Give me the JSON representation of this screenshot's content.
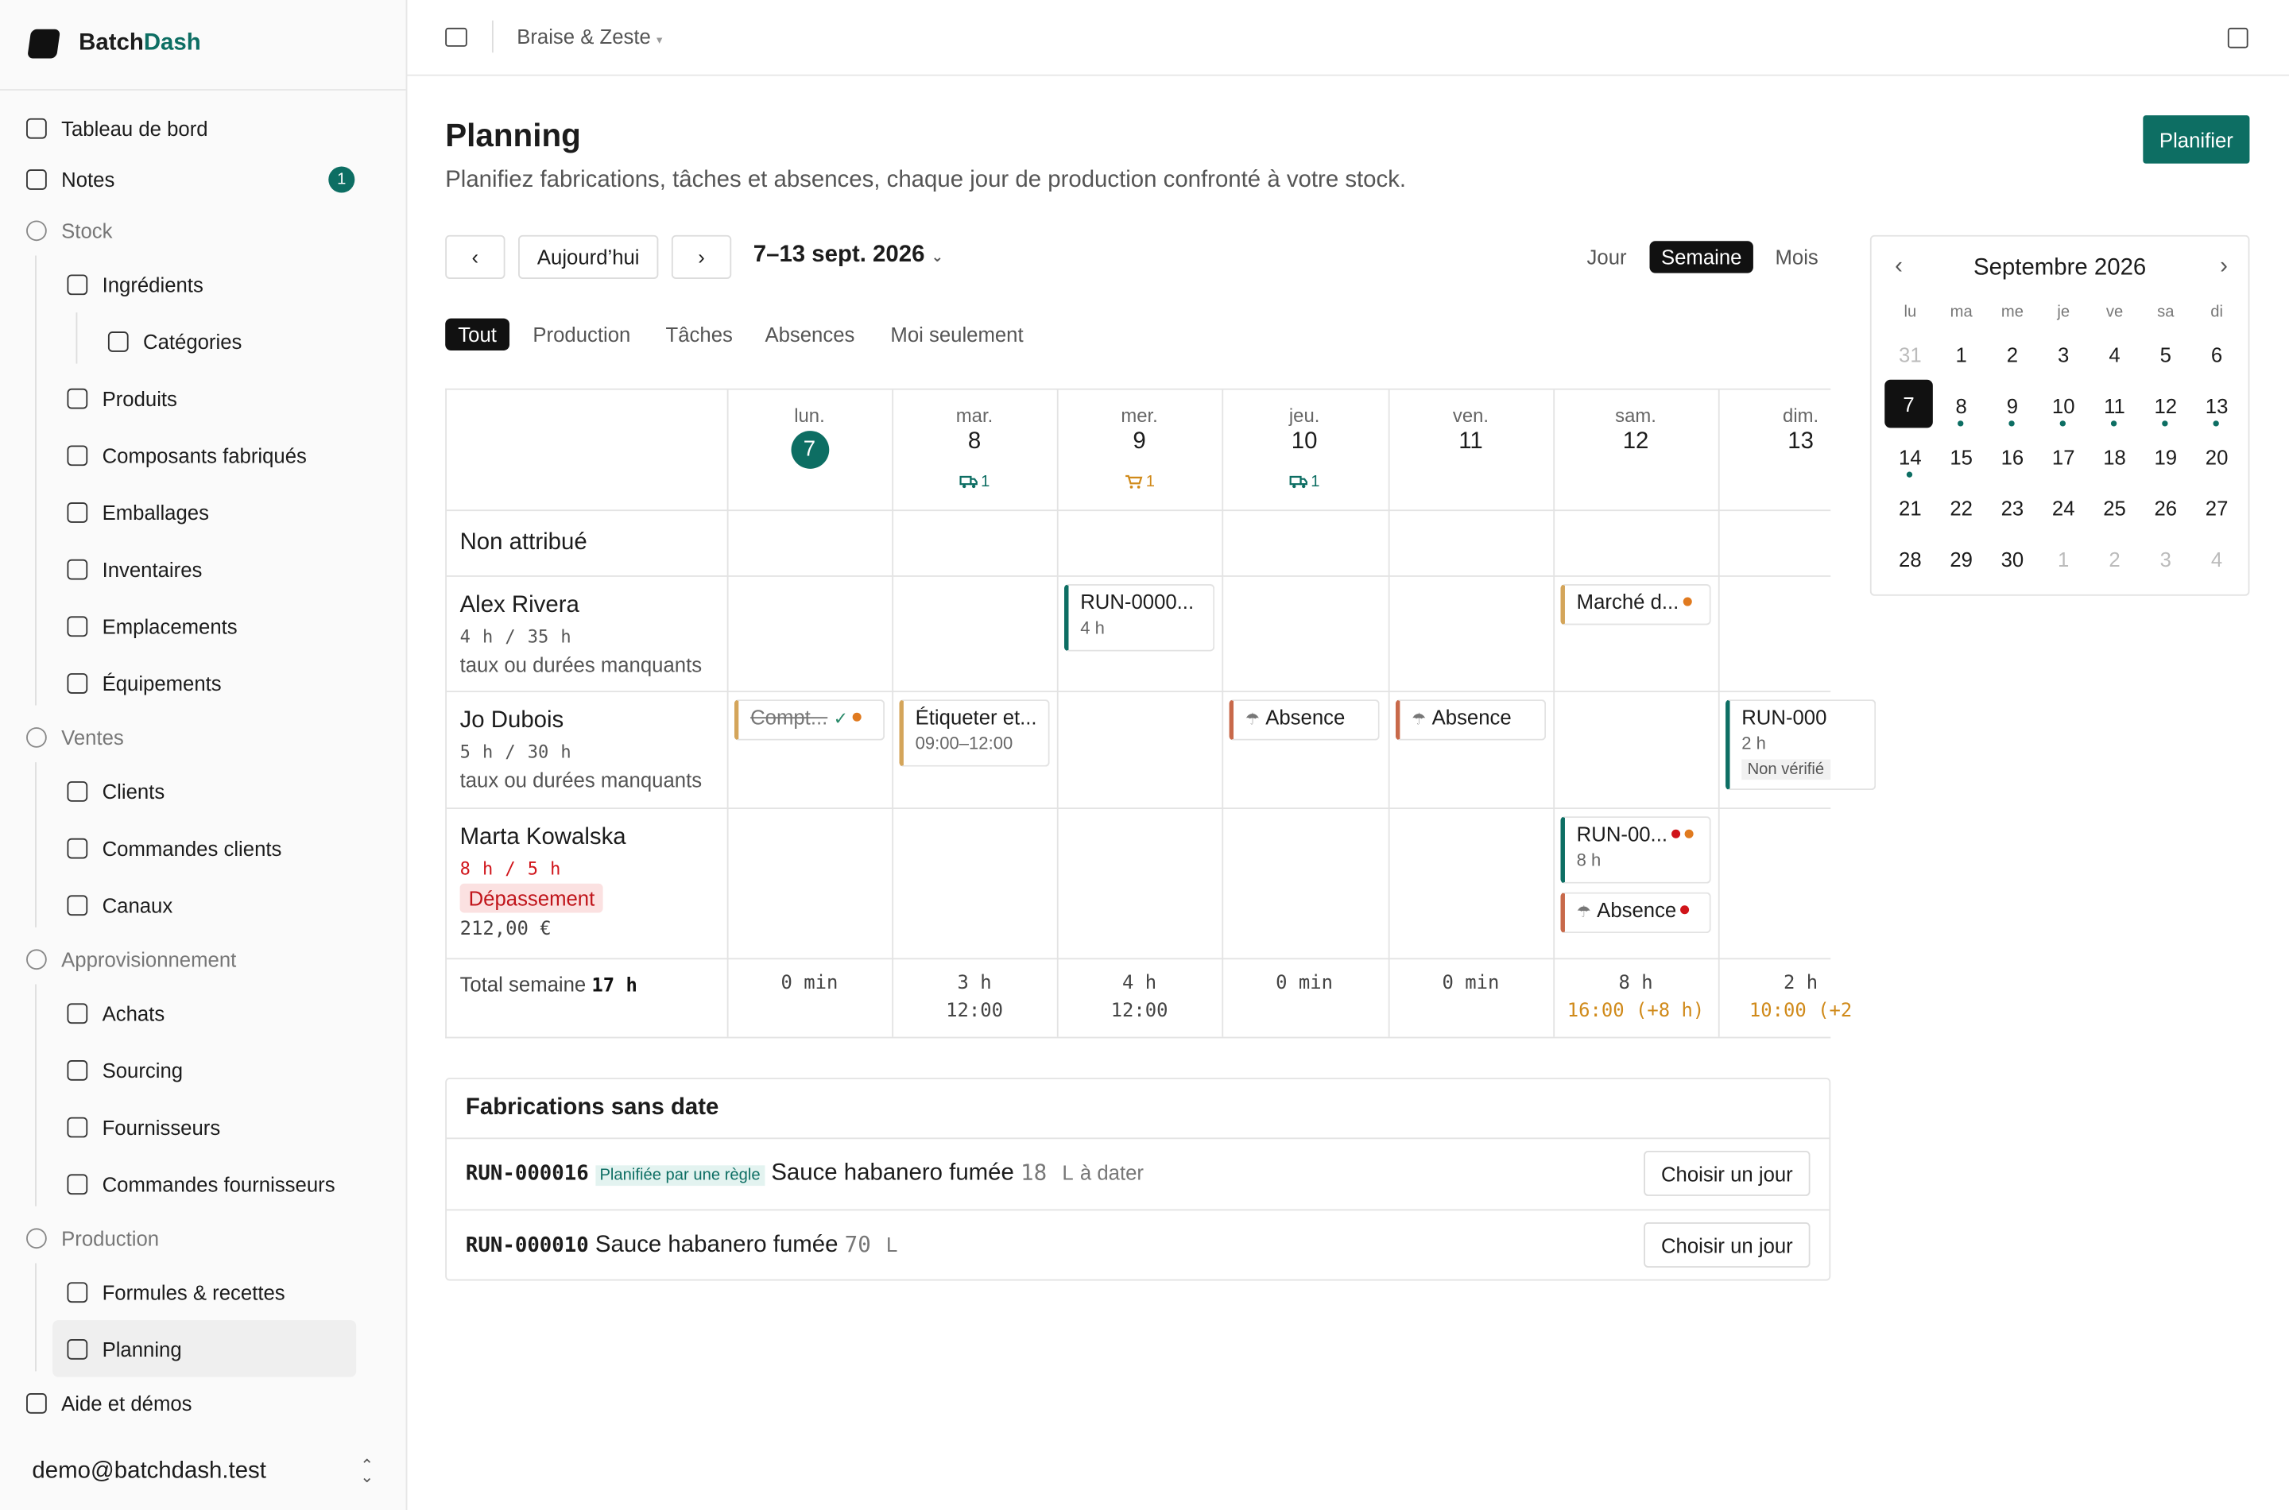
{
  "brand": {
    "first": "Batch",
    "second": "Dash"
  },
  "sidebar": {
    "items": [
      {
        "label": "Tableau de bord"
      },
      {
        "label": "Notes",
        "badge": 1
      },
      {
        "label": "Stock",
        "section": true,
        "children": [
          {
            "label": "Ingrédients",
            "children": [
              {
                "label": "Catégories"
              }
            ]
          },
          {
            "label": "Produits"
          },
          {
            "label": "Composants fabriqués"
          },
          {
            "label": "Emballages"
          },
          {
            "label": "Inventaires"
          },
          {
            "label": "Emplacements"
          },
          {
            "label": "Équipements"
          }
        ]
      },
      {
        "label": "Ventes",
        "section": true,
        "children": [
          {
            "label": "Clients"
          },
          {
            "label": "Commandes clients"
          },
          {
            "label": "Canaux"
          }
        ]
      },
      {
        "label": "Approvisionnement",
        "section": true,
        "children": [
          {
            "label": "Achats"
          },
          {
            "label": "Sourcing"
          },
          {
            "label": "Fournisseurs"
          },
          {
            "label": "Commandes fournisseurs"
          }
        ]
      },
      {
        "label": "Production",
        "section": true,
        "children": [
          {
            "label": "Formules & recettes"
          },
          {
            "label": "Planning",
            "active": true
          }
        ]
      },
      {
        "label": "Aide et démos"
      }
    ],
    "user": "demo@batchdash.test"
  },
  "topbar": {
    "workspace": "Braise & Zeste"
  },
  "header": {
    "title": "Planning",
    "subtitle": "Planifiez fabrications, tâches et absences, chaque jour de production confronté à votre stock.",
    "action": "Planifier"
  },
  "toolbar": {
    "today": "Aujourd’hui",
    "range": "7–13 sept. 2026",
    "views": [
      "Jour",
      "Semaine",
      "Mois"
    ],
    "active_view": 1
  },
  "filters": {
    "items": [
      "Tout",
      "Production",
      "Tâches",
      "Absences",
      "Moi seulement"
    ],
    "active": 0
  },
  "week": {
    "days": [
      {
        "dow": "lun.",
        "day": 7,
        "today": true
      },
      {
        "dow": "mar.",
        "day": 8,
        "indicator": {
          "icon": "truck",
          "count": 1
        }
      },
      {
        "dow": "mer.",
        "day": 9,
        "indicator": {
          "icon": "cart",
          "count": 1
        }
      },
      {
        "dow": "jeu.",
        "day": 10,
        "indicator": {
          "icon": "truck",
          "count": 1
        }
      },
      {
        "dow": "ven.",
        "day": 11
      },
      {
        "dow": "sam.",
        "day": 12
      },
      {
        "dow": "dim.",
        "day": 13
      }
    ],
    "rows": [
      {
        "name": "Non attribué",
        "cells": [
          [],
          [],
          [],
          [],
          [],
          [],
          []
        ]
      },
      {
        "name": "Alex Rivera",
        "load": "4 h / 35 h",
        "note": "taux ou durées manquants",
        "cells": [
          [],
          [],
          [
            {
              "label": "RUN-0000...",
              "sub": "4 h",
              "kind": "run"
            }
          ],
          [],
          [],
          [
            {
              "label": "Marché d...",
              "kind": "task",
              "dots": [
                "orange"
              ]
            }
          ],
          []
        ]
      },
      {
        "name": "Jo Dubois",
        "load": "5 h / 30 h",
        "note": "taux ou durées manquants",
        "cells": [
          [
            {
              "label": "Compt...",
              "kind": "task",
              "done": true,
              "dots": [
                "orange"
              ]
            }
          ],
          [
            {
              "label": "Étiqueter et...",
              "sub": "09:00–12:00",
              "kind": "task"
            }
          ],
          [],
          [
            {
              "label": "Absence",
              "kind": "absence"
            }
          ],
          [
            {
              "label": "Absence",
              "kind": "absence"
            }
          ],
          [],
          [
            {
              "label": "RUN-000",
              "sub": "2 h",
              "status": "Non vérifié",
              "kind": "run"
            }
          ]
        ]
      },
      {
        "name": "Marta Kowalska",
        "load": "8 h / 5 h",
        "over": true,
        "badge": "Dépassement",
        "cost": "212,00 €",
        "cells": [
          [],
          [],
          [],
          [],
          [],
          [
            {
              "label": "RUN-00...",
              "sub": "8 h",
              "kind": "run",
              "dots": [
                "red",
                "orange"
              ]
            },
            {
              "label": "Absence",
              "kind": "absence",
              "dots": [
                "red"
              ]
            }
          ],
          []
        ]
      }
    ],
    "totals": {
      "label": "Total semaine",
      "value": "17 h",
      "days": [
        {
          "hours": "0 min"
        },
        {
          "hours": "3 h",
          "end": "12:00"
        },
        {
          "hours": "4 h",
          "end": "12:00"
        },
        {
          "hours": "0 min"
        },
        {
          "hours": "0 min"
        },
        {
          "hours": "8 h",
          "end": "16:00 (+8 h)",
          "over": true
        },
        {
          "hours": "2 h",
          "end": "10:00 (+2",
          "over": true
        }
      ]
    }
  },
  "unscheduled": {
    "title": "Fabrications sans date",
    "rows": [
      {
        "id": "RUN-000016",
        "tag": "Planifiée par une règle",
        "product": "Sauce habanero fumée",
        "qty": 18,
        "unit": "L",
        "note": "à dater",
        "action": "Choisir un jour"
      },
      {
        "id": "RUN-000010",
        "product": "Sauce habanero fumée",
        "qty": 70,
        "unit": "L",
        "action": "Choisir un jour"
      }
    ]
  },
  "mini_calendar": {
    "title": "Septembre 2026",
    "dows": [
      "lu",
      "ma",
      "me",
      "je",
      "ve",
      "sa",
      "di"
    ],
    "weeks": [
      [
        {
          "day": 31,
          "muted": true
        },
        {
          "day": 1
        },
        {
          "day": 2
        },
        {
          "day": 3
        },
        {
          "day": 4
        },
        {
          "day": 5
        },
        {
          "day": 6
        }
      ],
      [
        {
          "day": 7,
          "selected": true
        },
        {
          "day": 8,
          "dot": true
        },
        {
          "day": 9,
          "dot": true
        },
        {
          "day": 10,
          "dot": true
        },
        {
          "day": 11,
          "dot": true
        },
        {
          "day": 12,
          "dot": true
        },
        {
          "day": 13,
          "dot": true
        }
      ],
      [
        {
          "day": 14,
          "dot": true
        },
        {
          "day": 15
        },
        {
          "day": 16
        },
        {
          "day": 17
        },
        {
          "day": 18
        },
        {
          "day": 19
        },
        {
          "day": 20
        }
      ],
      [
        {
          "day": 21
        },
        {
          "day": 22
        },
        {
          "day": 23
        },
        {
          "day": 24
        },
        {
          "day": 25
        },
        {
          "day": 26
        },
        {
          "day": 27
        }
      ],
      [
        {
          "day": 28
        },
        {
          "day": 29
        },
        {
          "day": 30
        },
        {
          "day": 1,
          "muted": true
        },
        {
          "day": 2,
          "muted": true
        },
        {
          "day": 3,
          "muted": true
        },
        {
          "day": 4,
          "muted": true
        }
      ]
    ]
  }
}
